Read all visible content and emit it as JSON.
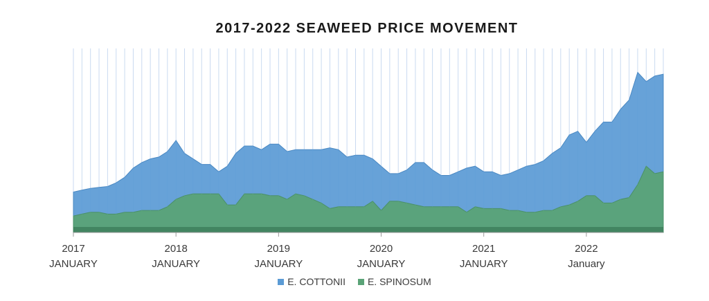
{
  "chart_data": {
    "type": "area",
    "title": "2017-2022 SEAWEED PRICE MOVEMENT",
    "x_tick_labels": [
      {
        "year": "2017",
        "month": "JANUARY"
      },
      {
        "year": "2018",
        "month": "JANUARY"
      },
      {
        "year": "2019",
        "month": "JANUARY"
      },
      {
        "year": "2020",
        "month": "JANUARY"
      },
      {
        "year": "2021",
        "month": "JANUARY"
      },
      {
        "year": "2022",
        "month": "January"
      }
    ],
    "x_range": [
      "2017-01",
      "2022-10"
    ],
    "grid": "vertical",
    "y_axis_labels": false,
    "ylim": [
      0,
      100
    ],
    "legend_position": "bottom",
    "series": [
      {
        "name": "E. COTTONII",
        "color": "#5b9bd5",
        "values": [
          22,
          23,
          24,
          24.5,
          25,
          27,
          30,
          35,
          38,
          40,
          41,
          44,
          50,
          43,
          40,
          37,
          37,
          33,
          36,
          43,
          47,
          47,
          45,
          48,
          48,
          44,
          45,
          45,
          45,
          45,
          46,
          45,
          41,
          42,
          42,
          40,
          36,
          32,
          32,
          34,
          38,
          38,
          34,
          31,
          31,
          33,
          35,
          36,
          33,
          33,
          31,
          32,
          34,
          36,
          37,
          39,
          43,
          46,
          53,
          55,
          49,
          55,
          60,
          60,
          67,
          72,
          87,
          82,
          85,
          86
        ]
      },
      {
        "name": "E. SPINOSUM",
        "color": "#5aa377",
        "values": [
          9,
          10,
          11,
          11,
          10,
          10,
          11,
          11,
          12,
          12,
          12,
          14,
          18,
          20,
          21,
          21,
          21,
          21,
          15,
          15,
          21,
          21,
          21,
          20,
          20,
          18,
          21,
          20,
          18,
          16,
          13,
          14,
          14,
          14,
          14,
          17,
          12,
          17,
          17,
          16,
          15,
          14,
          14,
          14,
          14,
          14,
          11,
          14,
          13,
          13,
          13,
          12,
          12,
          11,
          11,
          12,
          12,
          14,
          15,
          17,
          20,
          20,
          16,
          16,
          18,
          19,
          26,
          36,
          32,
          33
        ]
      }
    ]
  }
}
